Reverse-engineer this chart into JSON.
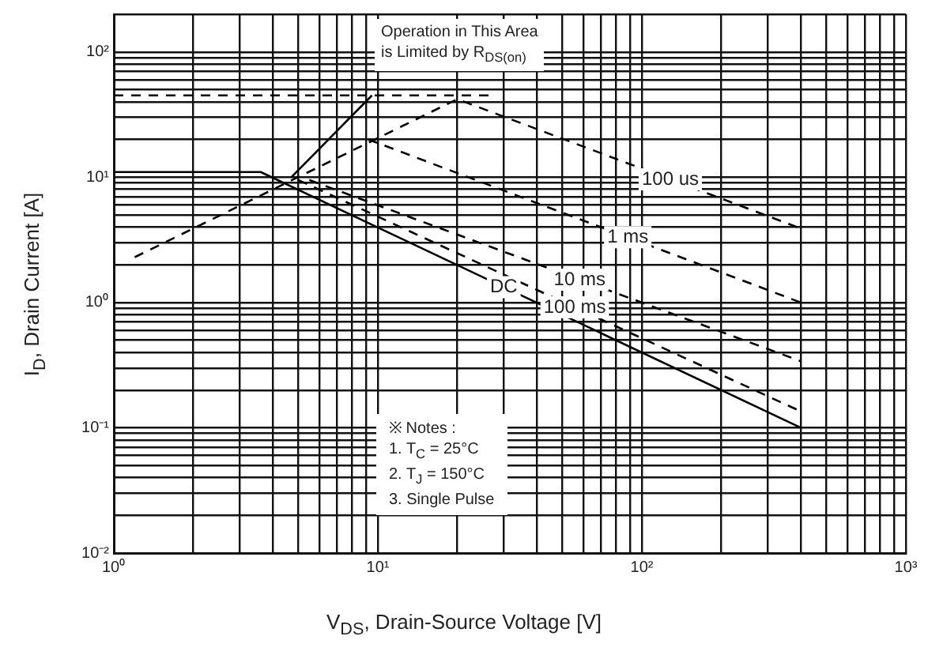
{
  "chart_data": {
    "type": "line",
    "xlabel": "V$_{DS}$, Drain-Source Voltage [V]",
    "ylabel": "I$_{D}$, Drain Current [A]",
    "log": "xy",
    "grid": true,
    "legend": false,
    "marker": "none",
    "xlim": [
      1,
      1000
    ],
    "ylim": [
      0.01,
      200
    ],
    "xticks": [
      {
        "value": 1,
        "label": "10⁰"
      },
      {
        "value": 2,
        "label": null
      },
      {
        "value": 3,
        "label": null
      },
      {
        "value": 4,
        "label": null
      },
      {
        "value": 5,
        "label": null
      },
      {
        "value": 6,
        "label": null
      },
      {
        "value": 7,
        "label": null
      },
      {
        "value": 8,
        "label": null
      },
      {
        "value": 9,
        "label": null
      },
      {
        "value": 10,
        "label": "10¹"
      },
      {
        "value": 20,
        "label": null
      },
      {
        "value": 30,
        "label": null
      },
      {
        "value": 40,
        "label": null
      },
      {
        "value": 50,
        "label": null
      },
      {
        "value": 60,
        "label": null
      },
      {
        "value": 70,
        "label": null
      },
      {
        "value": 80,
        "label": null
      },
      {
        "value": 90,
        "label": null
      },
      {
        "value": 100,
        "label": "10²"
      },
      {
        "value": 200,
        "label": null
      },
      {
        "value": 300,
        "label": null
      },
      {
        "value": 400,
        "label": null
      },
      {
        "value": 500,
        "label": null
      },
      {
        "value": 600,
        "label": null
      },
      {
        "value": 700,
        "label": null
      },
      {
        "value": 800,
        "label": null
      },
      {
        "value": 900,
        "label": null
      },
      {
        "value": 1000,
        "label": "10³"
      }
    ],
    "yticks": [
      {
        "value": 0.01,
        "label": "10⁻²"
      },
      {
        "value": 0.02,
        "label": null
      },
      {
        "value": 0.03,
        "label": null
      },
      {
        "value": 0.04,
        "label": null
      },
      {
        "value": 0.05,
        "label": null
      },
      {
        "value": 0.06,
        "label": null
      },
      {
        "value": 0.07,
        "label": null
      },
      {
        "value": 0.08,
        "label": null
      },
      {
        "value": 0.09,
        "label": null
      },
      {
        "value": 0.1,
        "label": "10⁻¹"
      },
      {
        "value": 0.2,
        "label": null
      },
      {
        "value": 0.3,
        "label": null
      },
      {
        "value": 0.4,
        "label": null
      },
      {
        "value": 0.5,
        "label": null
      },
      {
        "value": 0.6,
        "label": null
      },
      {
        "value": 0.7,
        "label": null
      },
      {
        "value": 0.8,
        "label": null
      },
      {
        "value": 0.9,
        "label": null
      },
      {
        "value": 1,
        "label": "10⁰"
      },
      {
        "value": 2,
        "label": null
      },
      {
        "value": 3,
        "label": null
      },
      {
        "value": 4,
        "label": null
      },
      {
        "value": 5,
        "label": null
      },
      {
        "value": 6,
        "label": null
      },
      {
        "value": 7,
        "label": null
      },
      {
        "value": 8,
        "label": null
      },
      {
        "value": 9,
        "label": null
      },
      {
        "value": 10,
        "label": "10¹"
      },
      {
        "value": 20,
        "label": null
      },
      {
        "value": 30,
        "label": null
      },
      {
        "value": 40,
        "label": null
      },
      {
        "value": 50,
        "label": null
      },
      {
        "value": 60,
        "label": null
      },
      {
        "value": 70,
        "label": null
      },
      {
        "value": 80,
        "label": null
      },
      {
        "value": 90,
        "label": null
      },
      {
        "value": 100,
        "label": "10²"
      },
      {
        "value": 200,
        "label": null
      }
    ],
    "series": [
      {
        "color": "#000000",
        "line_style": "dashed",
        "x": [
          1,
          28
        ],
        "values": [
          45,
          45
        ]
      },
      {
        "color": "#000000",
        "line_style": "solid",
        "x": [
          4.7,
          9.5
        ],
        "values": [
          10,
          45
        ]
      },
      {
        "name": "100 us",
        "color": "#000000",
        "line_style": "dashed",
        "x": [
          1.2,
          20,
          400
        ],
        "values": [
          2.3,
          42,
          3.9
        ]
      },
      {
        "name": "1 ms",
        "color": "#000000",
        "line_style": "dashed",
        "x": [
          9.2,
          400
        ],
        "values": [
          20,
          1
        ]
      },
      {
        "name": "10 ms",
        "color": "#000000",
        "line_style": "dashed",
        "x": [
          5.5,
          400
        ],
        "values": [
          9.5,
          0.34
        ]
      },
      {
        "name": "100 ms",
        "color": "#000000",
        "line_style": "dashed",
        "x": [
          5,
          400
        ],
        "values": [
          9.5,
          0.135
        ]
      },
      {
        "name": "DC",
        "color": "#000000",
        "line_style": "solid",
        "x": [
          1,
          3.6,
          400
        ],
        "values": [
          11,
          11,
          0.1
        ]
      }
    ],
    "annotations": [
      "Operation in This Area\nis Limited by R$_{DS(on)}$",
      "※ Notes :\n1. T$_{C}$ = 25°C\n2. T$_{J}$ = 150°C\n3. Single Pulse"
    ]
  }
}
